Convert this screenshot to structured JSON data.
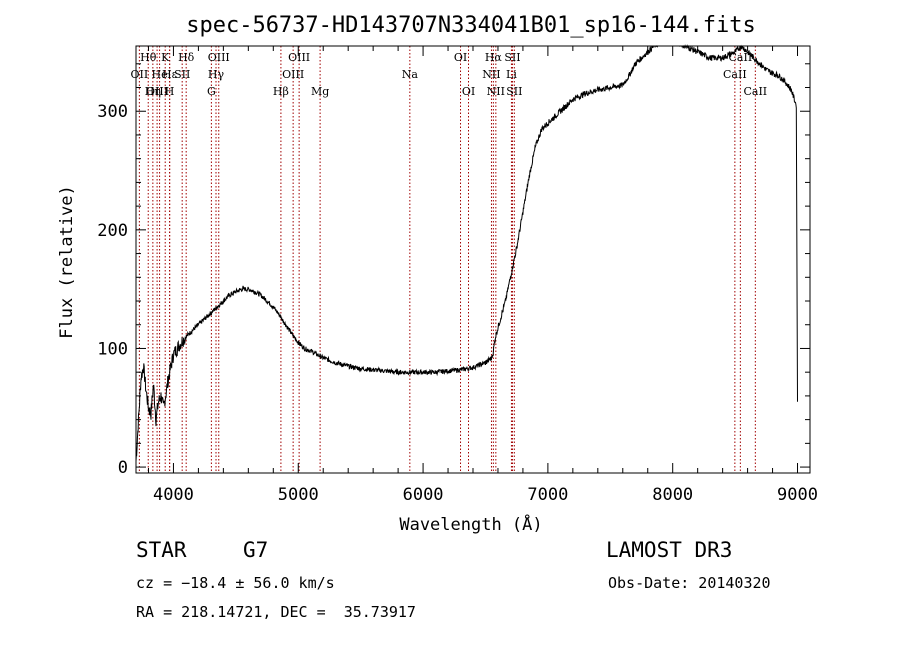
{
  "colors": {
    "spectrum": "#000000",
    "line_marker": "#a00000",
    "axis": "#000000"
  },
  "info": {
    "object_type": "STAR",
    "subclass": "G7",
    "survey": "LAMOST DR3",
    "cz": "cz = −18.4 ± 56.0 km/s",
    "obs_date": "Obs-Date: 20140320",
    "coords": "RA = 218.14721, DEC =  35.73917"
  },
  "chart_data": {
    "type": "line",
    "title": "spec-56737-HD143707N334041B01_sp16-144.fits",
    "xlabel": "Wavelength (Å)",
    "ylabel": "Flux (relative)",
    "xlim": [
      3700,
      9100
    ],
    "ylim": [
      -5,
      355
    ],
    "xticks": [
      4000,
      5000,
      6000,
      7000,
      8000,
      9000
    ],
    "yticks": [
      0,
      100,
      200,
      300
    ],
    "series": [
      {
        "name": "spectrum",
        "x": [
          3700,
          3720,
          3740,
          3760,
          3780,
          3800,
          3820,
          3840,
          3860,
          3880,
          3900,
          3920,
          3940,
          3960,
          3980,
          4000,
          4030,
          4060,
          4100,
          4150,
          4200,
          4250,
          4300,
          4350,
          4400,
          4450,
          4500,
          4550,
          4600,
          4650,
          4700,
          4750,
          4800,
          4850,
          4900,
          4950,
          5000,
          5050,
          5100,
          5150,
          5200,
          5300,
          5400,
          5500,
          5600,
          5700,
          5800,
          5900,
          6000,
          6100,
          6200,
          6300,
          6400,
          6500,
          6550,
          6560,
          6580,
          6620,
          6660,
          6700,
          6750,
          6800,
          6850,
          6900,
          6950,
          7000,
          7050,
          7100,
          7150,
          7200,
          7300,
          7400,
          7500,
          7600,
          7650,
          7700,
          7750,
          7800,
          7850,
          7900,
          8000,
          8100,
          8200,
          8300,
          8400,
          8500,
          8550,
          8600,
          8650,
          8700,
          8750,
          8800,
          8850,
          8900,
          8950,
          8990,
          9000
        ],
        "y": [
          5,
          40,
          75,
          85,
          65,
          50,
          45,
          70,
          40,
          55,
          60,
          50,
          62,
          75,
          85,
          95,
          100,
          105,
          110,
          115,
          120,
          125,
          130,
          135,
          140,
          145,
          148,
          150,
          150,
          148,
          145,
          140,
          135,
          128,
          120,
          112,
          105,
          100,
          98,
          95,
          92,
          88,
          85,
          83,
          82,
          81,
          80,
          80,
          80,
          80,
          81,
          82,
          84,
          88,
          92,
          96,
          110,
          125,
          140,
          160,
          185,
          215,
          245,
          270,
          285,
          290,
          295,
          300,
          305,
          310,
          315,
          318,
          320,
          322,
          330,
          340,
          345,
          350,
          355,
          358,
          360,
          355,
          350,
          345,
          345,
          350,
          355,
          350,
          345,
          340,
          335,
          332,
          330,
          325,
          318,
          305,
          55
        ]
      }
    ],
    "line_markers": [
      {
        "label": "Hθ",
        "x": 3798,
        "row": 0
      },
      {
        "label": "OII",
        "x": 3727,
        "row": 1
      },
      {
        "label": "OIII",
        "x": 3869,
        "row": 2
      },
      {
        "label": "He",
        "x": 3889,
        "row": 1
      },
      {
        "label": "Hη",
        "x": 3835,
        "row": 2
      },
      {
        "label": "K",
        "x": 3934,
        "row": 0
      },
      {
        "label": "Hε",
        "x": 3970,
        "row": 1
      },
      {
        "label": "H",
        "x": 3969,
        "row": 2
      },
      {
        "label": "SII",
        "x": 4070,
        "row": 1
      },
      {
        "label": "Hδ",
        "x": 4102,
        "row": 0
      },
      {
        "label": "OIII",
        "x": 4363,
        "row": 0
      },
      {
        "label": "Hγ",
        "x": 4341,
        "row": 1
      },
      {
        "label": "G",
        "x": 4304,
        "row": 2
      },
      {
        "label": "Hβ",
        "x": 4861,
        "row": 2
      },
      {
        "label": "OIII",
        "x": 4959,
        "row": 1
      },
      {
        "label": "OIII",
        "x": 5007,
        "row": 0
      },
      {
        "label": "Mg",
        "x": 5175,
        "row": 2
      },
      {
        "label": "Na",
        "x": 5894,
        "row": 1
      },
      {
        "label": "OI",
        "x": 6300,
        "row": 0
      },
      {
        "label": "OI",
        "x": 6364,
        "row": 2
      },
      {
        "label": "Hα",
        "x": 6563,
        "row": 0
      },
      {
        "label": "NII",
        "x": 6548,
        "row": 1
      },
      {
        "label": "NII",
        "x": 6583,
        "row": 2
      },
      {
        "label": "SII",
        "x": 6716,
        "row": 0
      },
      {
        "label": "Li",
        "x": 6708,
        "row": 1
      },
      {
        "label": "SII",
        "x": 6731,
        "row": 2
      },
      {
        "label": "CaII",
        "x": 8542,
        "row": 0
      },
      {
        "label": "CaII",
        "x": 8498,
        "row": 1
      },
      {
        "label": "CaII",
        "x": 8662,
        "row": 2
      }
    ]
  }
}
